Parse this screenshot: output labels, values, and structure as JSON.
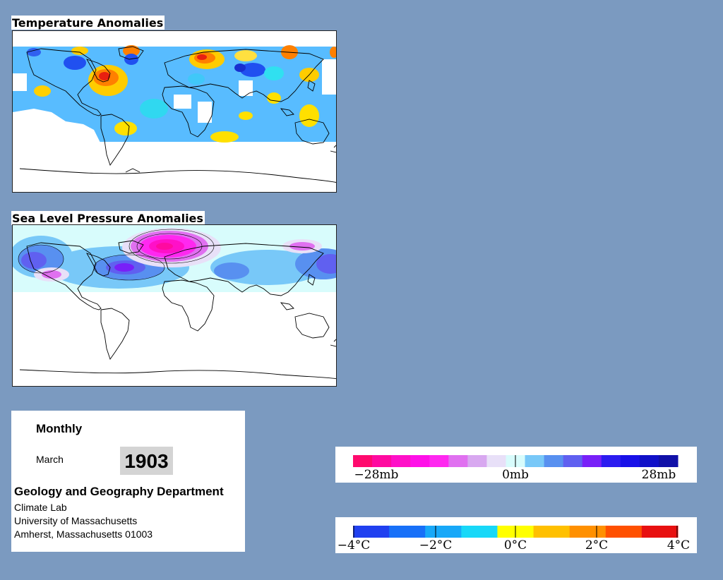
{
  "temperature_panel": {
    "title": "Temperature Anomalies"
  },
  "pressure_panel": {
    "title": "Sea Level Pressure Anomalies"
  },
  "info": {
    "period_type": "Monthly",
    "month": "March",
    "year": "1903",
    "department": "Geology and Geography Department",
    "lab": "Climate Lab",
    "university": "University of Massachusetts",
    "address": "Amherst, Massachusetts 01003"
  },
  "pressure_legend": {
    "labels": [
      "−28mb",
      "0mb",
      "28mb"
    ],
    "colors": [
      "#ff0a6e",
      "#ff0aa0",
      "#ff10c8",
      "#ff10e8",
      "#ff28f0",
      "#e070f0",
      "#d8a8f0",
      "#e8e0f8",
      "#d8fcfc",
      "#78c8f8",
      "#5890f0",
      "#6060f0",
      "#7820f8",
      "#2c1cf0",
      "#1810e8",
      "#1010c8",
      "#1010a8"
    ]
  },
  "temperature_legend": {
    "labels": [
      "−4°C",
      "−2°C",
      "0°C",
      "2°C",
      "4°C"
    ],
    "colors": [
      "#2040f0",
      "#1870f8",
      "#18a8f8",
      "#18d8f8",
      "#ffff00",
      "#ffc000",
      "#ff9000",
      "#ff5000",
      "#e81010"
    ]
  },
  "colors": {
    "background": "#7b9ac0",
    "temp_cold_deep": "#2040f0",
    "temp_cold": "#40a0ff",
    "temp_cool": "#40d8f8",
    "temp_warm": "#ffe000",
    "temp_hot": "#ff8000",
    "temp_extreme": "#e82010",
    "slp_low": "#ff30d0",
    "slp_high": "#4040f0"
  }
}
